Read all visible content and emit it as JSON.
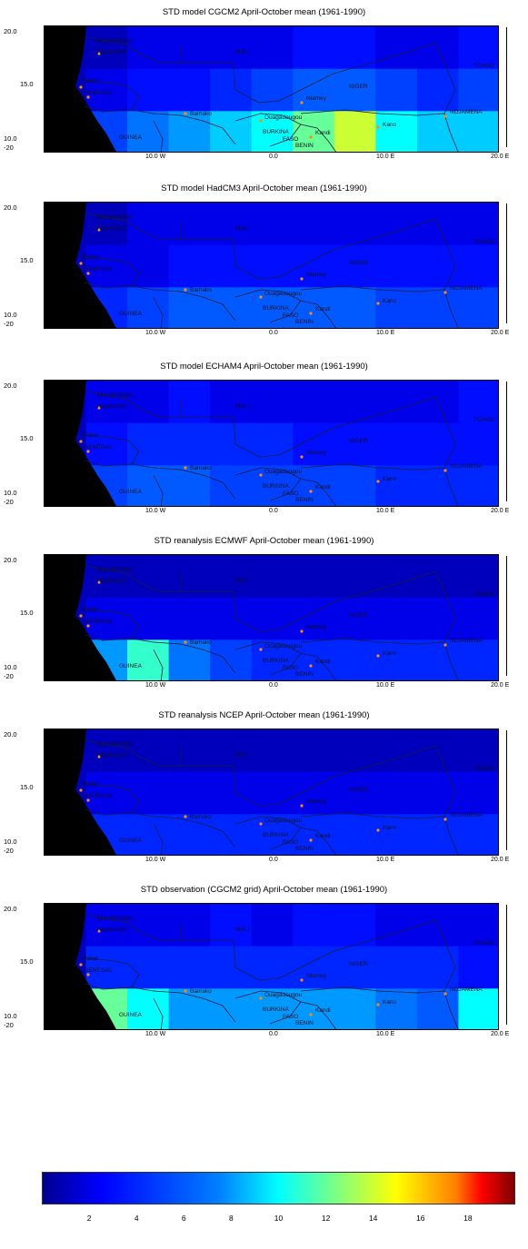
{
  "panels": [
    {
      "title": "STD model CGCM2 April-October mean (1961-1990)",
      "grid": [
        [
          1,
          1,
          2,
          2,
          2,
          2,
          3,
          3,
          2,
          2,
          3
        ],
        [
          1,
          2,
          3,
          3,
          4,
          5,
          6,
          6,
          5,
          4,
          5
        ],
        [
          1,
          5,
          7,
          8,
          9,
          10,
          12,
          14,
          10,
          9,
          9
        ]
      ]
    },
    {
      "title": "STD model HadCM3 April-October mean (1961-1990)",
      "grid": [
        [
          1,
          1,
          2,
          2,
          2,
          2,
          2,
          2,
          2,
          2,
          2
        ],
        [
          1,
          2,
          2,
          3,
          3,
          3,
          3,
          3,
          3,
          3,
          3
        ],
        [
          1,
          4,
          5,
          6,
          6,
          6,
          6,
          6,
          5,
          5,
          5
        ]
      ]
    },
    {
      "title": "STD model ECHAM4 April-October mean (1961-1990)",
      "grid": [
        [
          1,
          2,
          2,
          3,
          2,
          2,
          2,
          2,
          2,
          2,
          3
        ],
        [
          1,
          3,
          4,
          4,
          4,
          4,
          3,
          3,
          3,
          3,
          3
        ],
        [
          1,
          5,
          6,
          6,
          5,
          5,
          5,
          5,
          4,
          4,
          4
        ]
      ]
    },
    {
      "title": "STD reanalysis  ECMWF April-October mean (1961-1990)",
      "grid": [
        [
          1,
          1,
          1,
          1,
          1,
          1,
          1,
          1,
          1,
          1,
          1
        ],
        [
          1,
          2,
          2,
          2,
          2,
          2,
          2,
          2,
          2,
          2,
          2
        ],
        [
          1,
          8,
          11,
          7,
          5,
          4,
          4,
          4,
          4,
          4,
          4
        ]
      ]
    },
    {
      "title": "STD reanalysis  NCEP April-October mean (1961-1990)",
      "grid": [
        [
          1,
          1,
          1,
          1,
          1,
          1,
          1,
          1,
          1,
          1,
          1
        ],
        [
          1,
          2,
          2,
          2,
          2,
          2,
          2,
          2,
          2,
          2,
          2
        ],
        [
          1,
          4,
          4,
          4,
          4,
          4,
          4,
          4,
          4,
          4,
          4
        ]
      ]
    },
    {
      "title": "STD observation (CGCM2 grid) April-October mean (1961-1990)",
      "grid": [
        [
          1,
          2,
          2,
          2,
          3,
          2,
          3,
          3,
          2,
          2,
          2
        ],
        [
          1,
          4,
          4,
          4,
          4,
          4,
          4,
          4,
          4,
          4,
          3
        ],
        [
          1,
          12,
          10,
          8,
          8,
          8,
          8,
          8,
          7,
          6,
          10
        ]
      ]
    }
  ],
  "axes": {
    "y_top": "20.0",
    "y_mid": "15.0",
    "y_low": "10.0",
    "y_neg": "-20",
    "x_left": "10.0 W",
    "x_mid": "0.0",
    "x_right": "10.0 E",
    "x_far": "20.0 E"
  },
  "labels": {
    "mauritania": "MAURITANIA",
    "nouakchott": "Nouakchott",
    "mali": "MALI",
    "niger": "NIGER",
    "tchad": "TCHAD",
    "dakar": "Dakar",
    "senegal": "SENEGAL",
    "bamako": "Bamako",
    "ouagadougou": "Ouagadougou",
    "niamey": "Niamey",
    "ndjamena": "NDJAMENA",
    "kano": "Kano",
    "guinea": "GUINEA",
    "burkina": "BURKINA",
    "faso": "FASO",
    "kandi": "Kandi",
    "benin": "BENIN"
  },
  "colorbar": {
    "min": 0,
    "max": 20,
    "ticks": [
      "2",
      "4",
      "6",
      "8",
      "10",
      "12",
      "14",
      "16",
      "18"
    ],
    "stops": [
      "#00008f",
      "#0000ff",
      "#0080ff",
      "#00ffff",
      "#80ff80",
      "#ffff00",
      "#ff8000",
      "#ff0000",
      "#800000"
    ]
  }
}
